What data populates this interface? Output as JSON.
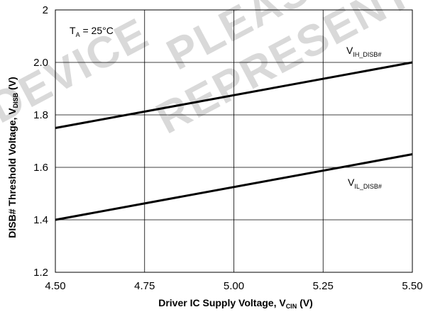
{
  "chart_data": {
    "type": "line",
    "x": [
      4.5,
      5.5
    ],
    "xlim": [
      4.5,
      5.5
    ],
    "ylim": [
      1.2,
      2.2
    ],
    "x_ticks": [
      "4.50",
      "4.75",
      "5.00",
      "5.25",
      "5.50"
    ],
    "y_ticks": [
      "1.2",
      "1.4",
      "1.6",
      "1.8",
      "2.0",
      "2"
    ],
    "xlabel": {
      "main": "Driver IC Supply Voltage, V",
      "sub": "CIN",
      "unit": " (V)"
    },
    "ylabel": {
      "main": "DISB# Threshold Voltage, V",
      "sub": "DISB",
      "unit": " (V)"
    },
    "grid": true,
    "series": [
      {
        "name": "VIH_DISB#",
        "label_main": "V",
        "label_sub": "IH_DISB#",
        "x": [
          4.5,
          5.5
        ],
        "values": [
          1.75,
          2.0
        ]
      },
      {
        "name": "VIL_DISB#",
        "label_main": "V",
        "label_sub": "IL_DISB#",
        "x": [
          4.5,
          5.5
        ],
        "values": [
          1.4,
          1.65
        ]
      }
    ],
    "annotations": [
      {
        "main": "T",
        "sub": "A",
        "rest": " = 25°C"
      }
    ]
  },
  "watermark": [
    "DEVICE",
    "PLEASE",
    "REPRESENT"
  ]
}
